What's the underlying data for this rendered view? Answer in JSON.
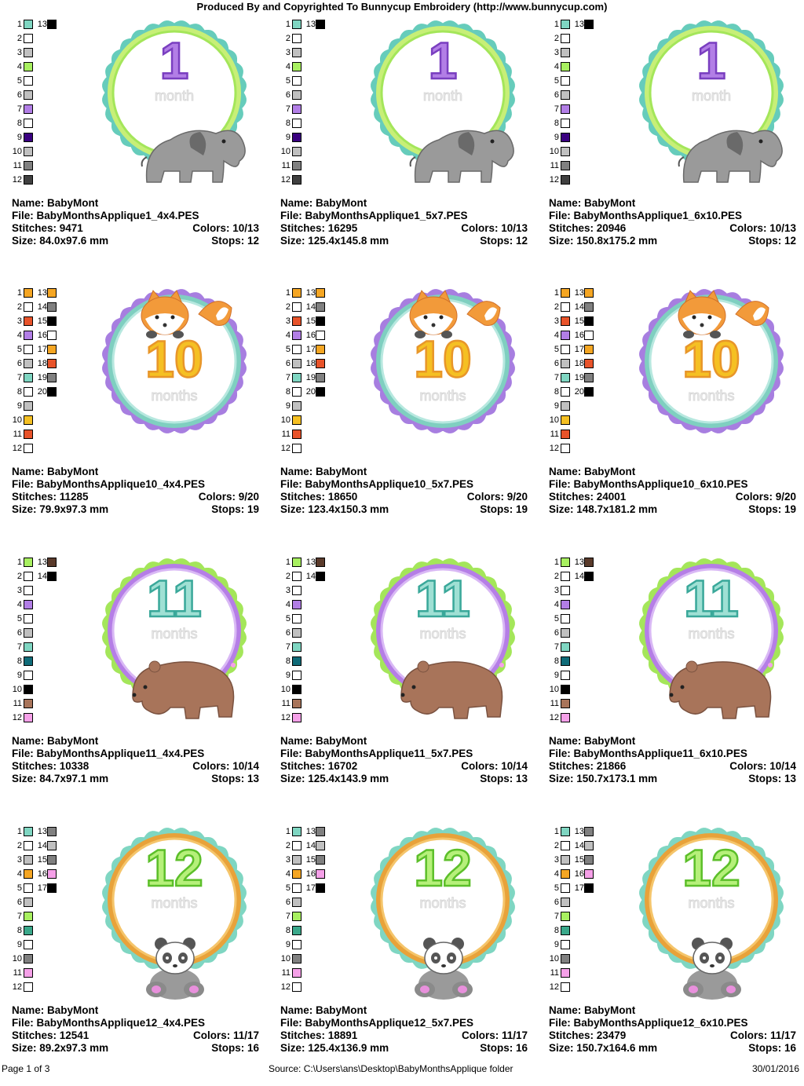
{
  "header": "Produced By and Copyrighted To Bunnycup Embroidery (http://www.bunnycup.com)",
  "labels": {
    "name": "Name:",
    "file": "File:",
    "stitches": "Stitches:",
    "colors": "Colors:",
    "size": "Size:",
    "stops": "Stops:"
  },
  "designs": [
    {
      "name": "BabyMont",
      "file": "BabyMonthsApplique1_4x4.PES",
      "stitches": "9471",
      "colors": "10/13",
      "size": "84.0x97.6 mm",
      "stops": "12",
      "theme": "elephant",
      "number": "1",
      "word": "month",
      "ring_colors": [
        "#66ccbb",
        "#c7ef77",
        "#a4e65a"
      ],
      "swatches": [
        [
          1,
          "#7fd6c2"
        ],
        [
          2,
          "#ffffff"
        ],
        [
          3,
          "#c0c0c0"
        ],
        [
          4,
          "#a8f060"
        ],
        [
          5,
          "#ffffff"
        ],
        [
          6,
          "#c0c0c0"
        ],
        [
          7,
          "#b27ee6"
        ],
        [
          8,
          "#ffffff"
        ],
        [
          9,
          "#3a0080"
        ],
        [
          10,
          "#c0c0c0"
        ],
        [
          11,
          "#808080"
        ],
        [
          12,
          "#404040"
        ],
        [
          13,
          "#000000"
        ]
      ]
    },
    {
      "name": "BabyMont",
      "file": "BabyMonthsApplique1_5x7.PES",
      "stitches": "16295",
      "colors": "10/13",
      "size": "125.4x145.8 mm",
      "stops": "12",
      "theme": "elephant",
      "number": "1",
      "word": "month",
      "ring_colors": [
        "#66ccbb",
        "#c7ef77",
        "#a4e65a"
      ],
      "swatches": [
        [
          1,
          "#7fd6c2"
        ],
        [
          2,
          "#ffffff"
        ],
        [
          3,
          "#c0c0c0"
        ],
        [
          4,
          "#a8f060"
        ],
        [
          5,
          "#ffffff"
        ],
        [
          6,
          "#c0c0c0"
        ],
        [
          7,
          "#b27ee6"
        ],
        [
          8,
          "#ffffff"
        ],
        [
          9,
          "#3a0080"
        ],
        [
          10,
          "#c0c0c0"
        ],
        [
          11,
          "#808080"
        ],
        [
          12,
          "#404040"
        ],
        [
          13,
          "#000000"
        ]
      ]
    },
    {
      "name": "BabyMont",
      "file": "BabyMonthsApplique1_6x10.PES",
      "stitches": "20946",
      "colors": "10/13",
      "size": "150.8x175.2 mm",
      "stops": "12",
      "theme": "elephant",
      "number": "1",
      "word": "month",
      "ring_colors": [
        "#66ccbb",
        "#c7ef77",
        "#a4e65a"
      ],
      "swatches": [
        [
          1,
          "#7fd6c2"
        ],
        [
          2,
          "#ffffff"
        ],
        [
          3,
          "#c0c0c0"
        ],
        [
          4,
          "#a8f060"
        ],
        [
          5,
          "#ffffff"
        ],
        [
          6,
          "#c0c0c0"
        ],
        [
          7,
          "#b27ee6"
        ],
        [
          8,
          "#ffffff"
        ],
        [
          9,
          "#3a0080"
        ],
        [
          10,
          "#c0c0c0"
        ],
        [
          11,
          "#808080"
        ],
        [
          12,
          "#404040"
        ],
        [
          13,
          "#000000"
        ]
      ]
    },
    {
      "name": "BabyMont",
      "file": "BabyMonthsApplique10_4x4.PES",
      "stitches": "11285",
      "colors": "9/20",
      "size": "79.9x97.3 mm",
      "stops": "19",
      "theme": "fox",
      "number": "10",
      "word": "months",
      "ring_colors": [
        "#a77ee0",
        "#7fcfc0",
        "#b7e8df"
      ],
      "swatches": [
        [
          1,
          "#f5a623"
        ],
        [
          2,
          "#ffffff"
        ],
        [
          3,
          "#e8532a"
        ],
        [
          4,
          "#b27ee6"
        ],
        [
          5,
          "#ffffff"
        ],
        [
          6,
          "#c0c0c0"
        ],
        [
          7,
          "#7fd6c2"
        ],
        [
          8,
          "#ffffff"
        ],
        [
          9,
          "#c0c0c0"
        ],
        [
          10,
          "#f5c023"
        ],
        [
          11,
          "#e8532a"
        ],
        [
          12,
          "#ffffff"
        ],
        [
          13,
          "#f5a623"
        ],
        [
          14,
          "#808080"
        ],
        [
          15,
          "#000000"
        ],
        [
          16,
          "#ffffff"
        ],
        [
          17,
          "#f5a623"
        ],
        [
          18,
          "#e8532a"
        ],
        [
          19,
          "#808080"
        ],
        [
          20,
          "#000000"
        ]
      ]
    },
    {
      "name": "BabyMont",
      "file": "BabyMonthsApplique10_5x7.PES",
      "stitches": "18650",
      "colors": "9/20",
      "size": "123.4x150.3 mm",
      "stops": "19",
      "theme": "fox",
      "number": "10",
      "word": "months",
      "ring_colors": [
        "#a77ee0",
        "#7fcfc0",
        "#b7e8df"
      ],
      "swatches": [
        [
          1,
          "#f5a623"
        ],
        [
          2,
          "#ffffff"
        ],
        [
          3,
          "#e8532a"
        ],
        [
          4,
          "#b27ee6"
        ],
        [
          5,
          "#ffffff"
        ],
        [
          6,
          "#c0c0c0"
        ],
        [
          7,
          "#7fd6c2"
        ],
        [
          8,
          "#ffffff"
        ],
        [
          9,
          "#c0c0c0"
        ],
        [
          10,
          "#f5c023"
        ],
        [
          11,
          "#e8532a"
        ],
        [
          12,
          "#ffffff"
        ],
        [
          13,
          "#f5a623"
        ],
        [
          14,
          "#808080"
        ],
        [
          15,
          "#000000"
        ],
        [
          16,
          "#ffffff"
        ],
        [
          17,
          "#f5a623"
        ],
        [
          18,
          "#e8532a"
        ],
        [
          19,
          "#808080"
        ],
        [
          20,
          "#000000"
        ]
      ]
    },
    {
      "name": "BabyMont",
      "file": "BabyMonthsApplique10_6x10.PES",
      "stitches": "24001",
      "colors": "9/20",
      "size": "148.7x181.2 mm",
      "stops": "19",
      "theme": "fox",
      "number": "10",
      "word": "months",
      "ring_colors": [
        "#a77ee0",
        "#7fcfc0",
        "#b7e8df"
      ],
      "swatches": [
        [
          1,
          "#f5a623"
        ],
        [
          2,
          "#ffffff"
        ],
        [
          3,
          "#e8532a"
        ],
        [
          4,
          "#b27ee6"
        ],
        [
          5,
          "#ffffff"
        ],
        [
          6,
          "#c0c0c0"
        ],
        [
          7,
          "#7fd6c2"
        ],
        [
          8,
          "#ffffff"
        ],
        [
          9,
          "#c0c0c0"
        ],
        [
          10,
          "#f5c023"
        ],
        [
          11,
          "#e8532a"
        ],
        [
          12,
          "#ffffff"
        ],
        [
          13,
          "#f5a623"
        ],
        [
          14,
          "#808080"
        ],
        [
          15,
          "#000000"
        ],
        [
          16,
          "#ffffff"
        ],
        [
          17,
          "#f5a623"
        ],
        [
          18,
          "#e8532a"
        ],
        [
          19,
          "#808080"
        ],
        [
          20,
          "#000000"
        ]
      ]
    },
    {
      "name": "BabyMont",
      "file": "BabyMonthsApplique11_4x4.PES",
      "stitches": "10338",
      "colors": "10/14",
      "size": "84.7x97.1 mm",
      "stops": "13",
      "theme": "bear",
      "number": "11",
      "word": "months",
      "ring_colors": [
        "#a4e65a",
        "#b57ee6",
        "#d9b8f5"
      ],
      "swatches": [
        [
          1,
          "#a8f060"
        ],
        [
          2,
          "#ffffff"
        ],
        [
          3,
          "#ffffff"
        ],
        [
          4,
          "#b27ee6"
        ],
        [
          5,
          "#ffffff"
        ],
        [
          6,
          "#c0c0c0"
        ],
        [
          7,
          "#7fd6c2"
        ],
        [
          8,
          "#0f6b78"
        ],
        [
          9,
          "#ffffff"
        ],
        [
          10,
          "#000000"
        ],
        [
          11,
          "#a8745a"
        ],
        [
          12,
          "#f5a0e8"
        ],
        [
          13,
          "#5a3a2a"
        ],
        [
          14,
          "#000000"
        ]
      ]
    },
    {
      "name": "BabyMont",
      "file": "BabyMonthsApplique11_5x7.PES",
      "stitches": "16702",
      "colors": "10/14",
      "size": "125.4x143.9 mm",
      "stops": "13",
      "theme": "bear",
      "number": "11",
      "word": "months",
      "ring_colors": [
        "#a4e65a",
        "#b57ee6",
        "#d9b8f5"
      ],
      "swatches": [
        [
          1,
          "#a8f060"
        ],
        [
          2,
          "#ffffff"
        ],
        [
          3,
          "#ffffff"
        ],
        [
          4,
          "#b27ee6"
        ],
        [
          5,
          "#ffffff"
        ],
        [
          6,
          "#c0c0c0"
        ],
        [
          7,
          "#7fd6c2"
        ],
        [
          8,
          "#0f6b78"
        ],
        [
          9,
          "#ffffff"
        ],
        [
          10,
          "#000000"
        ],
        [
          11,
          "#a8745a"
        ],
        [
          12,
          "#f5a0e8"
        ],
        [
          13,
          "#5a3a2a"
        ],
        [
          14,
          "#000000"
        ]
      ]
    },
    {
      "name": "BabyMont",
      "file": "BabyMonthsApplique11_6x10.PES",
      "stitches": "21866",
      "colors": "10/14",
      "size": "150.7x173.1 mm",
      "stops": "13",
      "theme": "bear",
      "number": "11",
      "word": "months",
      "ring_colors": [
        "#a4e65a",
        "#b57ee6",
        "#d9b8f5"
      ],
      "swatches": [
        [
          1,
          "#a8f060"
        ],
        [
          2,
          "#ffffff"
        ],
        [
          3,
          "#ffffff"
        ],
        [
          4,
          "#b27ee6"
        ],
        [
          5,
          "#ffffff"
        ],
        [
          6,
          "#c0c0c0"
        ],
        [
          7,
          "#7fd6c2"
        ],
        [
          8,
          "#0f6b78"
        ],
        [
          9,
          "#ffffff"
        ],
        [
          10,
          "#000000"
        ],
        [
          11,
          "#a8745a"
        ],
        [
          12,
          "#f5a0e8"
        ],
        [
          13,
          "#5a3a2a"
        ],
        [
          14,
          "#000000"
        ]
      ]
    },
    {
      "name": "BabyMont",
      "file": "BabyMonthsApplique12_4x4.PES",
      "stitches": "12541",
      "colors": "11/17",
      "size": "89.2x97.3 mm",
      "stops": "16",
      "theme": "panda",
      "number": "12",
      "word": "months",
      "ring_colors": [
        "#7fd6c2",
        "#e8a23a",
        "#f5c56b"
      ],
      "swatches": [
        [
          1,
          "#7fd6c2"
        ],
        [
          2,
          "#ffffff"
        ],
        [
          3,
          "#c0c0c0"
        ],
        [
          4,
          "#f5a623"
        ],
        [
          5,
          "#ffffff"
        ],
        [
          6,
          "#c0c0c0"
        ],
        [
          7,
          "#a8f060"
        ],
        [
          8,
          "#3aa88a"
        ],
        [
          9,
          "#ffffff"
        ],
        [
          10,
          "#808080"
        ],
        [
          11,
          "#f5a0e8"
        ],
        [
          12,
          "#ffffff"
        ],
        [
          13,
          "#808080"
        ],
        [
          14,
          "#c0c0c0"
        ],
        [
          15,
          "#808080"
        ],
        [
          16,
          "#f5a0e8"
        ],
        [
          17,
          "#000000"
        ]
      ]
    },
    {
      "name": "BabyMont",
      "file": "BabyMonthsApplique12_5x7.PES",
      "stitches": "18891",
      "colors": "11/17",
      "size": "125.4x136.9 mm",
      "stops": "16",
      "theme": "panda",
      "number": "12",
      "word": "months",
      "ring_colors": [
        "#7fd6c2",
        "#e8a23a",
        "#f5c56b"
      ],
      "swatches": [
        [
          1,
          "#7fd6c2"
        ],
        [
          2,
          "#ffffff"
        ],
        [
          3,
          "#c0c0c0"
        ],
        [
          4,
          "#f5a623"
        ],
        [
          5,
          "#ffffff"
        ],
        [
          6,
          "#c0c0c0"
        ],
        [
          7,
          "#a8f060"
        ],
        [
          8,
          "#3aa88a"
        ],
        [
          9,
          "#ffffff"
        ],
        [
          10,
          "#808080"
        ],
        [
          11,
          "#f5a0e8"
        ],
        [
          12,
          "#ffffff"
        ],
        [
          13,
          "#808080"
        ],
        [
          14,
          "#c0c0c0"
        ],
        [
          15,
          "#808080"
        ],
        [
          16,
          "#f5a0e8"
        ],
        [
          17,
          "#000000"
        ]
      ]
    },
    {
      "name": "BabyMont",
      "file": "BabyMonthsApplique12_6x10.PES",
      "stitches": "23479",
      "colors": "11/17",
      "size": "150.7x164.6 mm",
      "stops": "16",
      "theme": "panda",
      "number": "12",
      "word": "months",
      "ring_colors": [
        "#7fd6c2",
        "#e8a23a",
        "#f5c56b"
      ],
      "swatches": [
        [
          1,
          "#7fd6c2"
        ],
        [
          2,
          "#ffffff"
        ],
        [
          3,
          "#c0c0c0"
        ],
        [
          4,
          "#f5a623"
        ],
        [
          5,
          "#ffffff"
        ],
        [
          6,
          "#c0c0c0"
        ],
        [
          7,
          "#a8f060"
        ],
        [
          8,
          "#3aa88a"
        ],
        [
          9,
          "#ffffff"
        ],
        [
          10,
          "#808080"
        ],
        [
          11,
          "#f5a0e8"
        ],
        [
          12,
          "#ffffff"
        ],
        [
          13,
          "#808080"
        ],
        [
          14,
          "#c0c0c0"
        ],
        [
          15,
          "#808080"
        ],
        [
          16,
          "#f5a0e8"
        ],
        [
          17,
          "#000000"
        ]
      ]
    }
  ],
  "footer": {
    "page": "Page 1 of 3",
    "source": "Source: C:\\Users\\ans\\Desktop\\BabyMonthsApplique folder",
    "date": "30/01/2016"
  }
}
